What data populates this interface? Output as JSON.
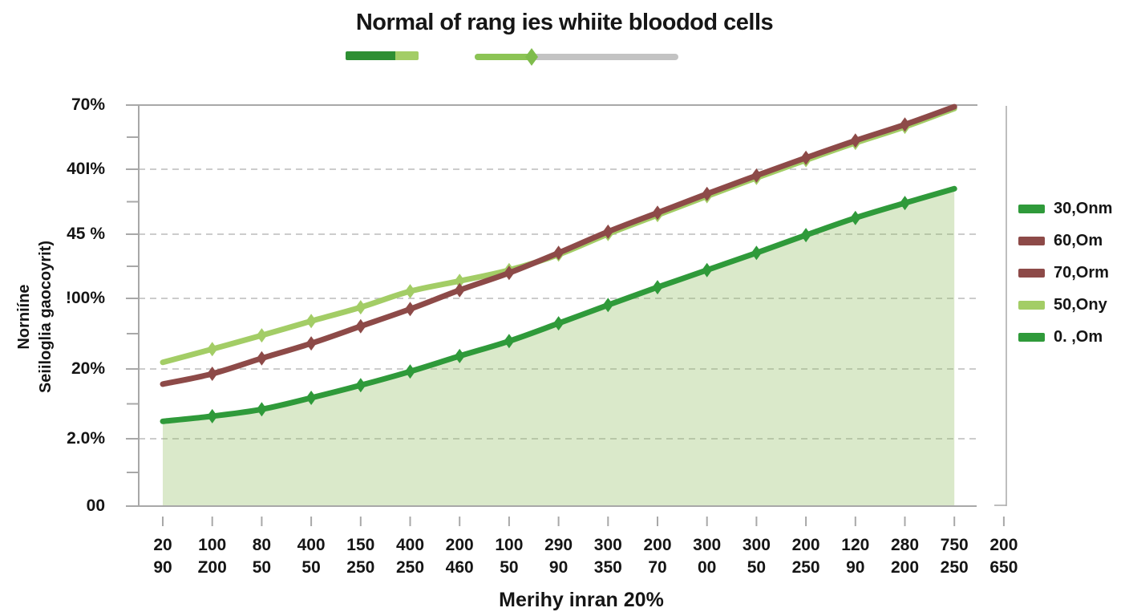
{
  "header": {
    "title": "Normal of rang ies whiite bloodod cells"
  },
  "decorations": {
    "bar": {
      "segment1_color": "#2e8f33",
      "segment2_color": "#a3cd66"
    },
    "slider": {
      "fill_color": "#8cc455",
      "track_color": "#c3c3c3",
      "thumb_color": "#7fbc4c"
    }
  },
  "colors": {
    "axis_gray": "#a8a8a8",
    "grid_gray": "#bcbcbc",
    "area_fill": "rgba(143,188,94,0.33)",
    "text": "#151515"
  },
  "chart_data": {
    "type": "line",
    "title": "Normal of rang ies whiite bloodod cells",
    "xlabel": "Merihy inran 20%",
    "ylabel": "Norniíne Seiiloglia gaocoyrit)",
    "ylabel_lines": [
      "Norniíne",
      "Seiiloglia gaocoyrit)"
    ],
    "ylim": [
      0,
      70
    ],
    "grid": "horizontal-dashed",
    "legend_position": "right",
    "y_tick_labels": [
      "70%",
      "40I%",
      "45 %",
      "!00%",
      "20%",
      "2.0%",
      "00"
    ],
    "x_tick_labels_line1": [
      "20",
      "100",
      "80",
      "400",
      "150",
      "400",
      "200",
      "100",
      "290",
      "300",
      "200",
      "300",
      "300",
      "200",
      "120",
      "280",
      "750",
      "200"
    ],
    "x_tick_labels_line2": [
      "90",
      "Z00",
      "50",
      "50",
      "250",
      "250",
      "460",
      "50",
      "90",
      "350",
      "70",
      "00",
      "50",
      "250",
      "90",
      "200",
      "250",
      "650"
    ],
    "series": [
      {
        "name": "50,Ony",
        "color": "#a3cd66",
        "marker": "diamond",
        "values": [
          25.1,
          27.4,
          29.8,
          32.3,
          34.7,
          37.5,
          39.3,
          41.2,
          43.9,
          47.5,
          50.8,
          54.1,
          57.3,
          60.4,
          63.4,
          66.2,
          69.4
        ]
      },
      {
        "name": "60,Om",
        "color": "#8d4a48",
        "marker": "diamond",
        "values": [
          21.3,
          23.1,
          25.8,
          28.4,
          31.4,
          34.4,
          37.7,
          40.7,
          44.2,
          47.9,
          51.2,
          54.5,
          57.7,
          60.8,
          63.8,
          66.6,
          69.7
        ]
      },
      {
        "name": "30,Onm",
        "color": "#2f9a3a",
        "marker": "diamond",
        "area_fill": true,
        "values": [
          14.8,
          15.7,
          16.9,
          18.9,
          21.1,
          23.5,
          26.2,
          28.8,
          31.9,
          35.1,
          38.2,
          41.2,
          44.2,
          47.3,
          50.3,
          52.9,
          55.4
        ]
      }
    ],
    "legend": [
      {
        "label": "30,Onm",
        "color": "#2f9a3a"
      },
      {
        "label": "60,Om",
        "color": "#8d4a48"
      },
      {
        "label": "70,Orm",
        "color": "#8d4a48"
      },
      {
        "label": "50,Ony",
        "color": "#a3cd66"
      },
      {
        "label": "0. ,Om",
        "color": "#2f9a3a"
      }
    ]
  }
}
